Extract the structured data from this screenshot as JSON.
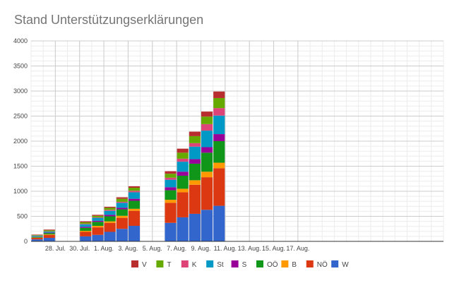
{
  "chart_data": {
    "type": "bar",
    "stacked": true,
    "title": "Stand Unterstützungserklärungen",
    "xlabel": "",
    "ylabel": "",
    "ylim": [
      0,
      4000
    ],
    "yticks": [
      0,
      500,
      1000,
      1500,
      2000,
      2500,
      3000,
      3500,
      4000
    ],
    "x_domain": [
      0,
      34
    ],
    "x_ticks": [
      {
        "day": 2,
        "label": "28. Jul."
      },
      {
        "day": 4,
        "label": "30. Jul."
      },
      {
        "day": 6,
        "label": "1. Aug."
      },
      {
        "day": 8,
        "label": "3. Aug."
      },
      {
        "day": 10,
        "label": "5. Aug."
      },
      {
        "day": 12,
        "label": "7. Aug."
      },
      {
        "day": 14,
        "label": "9. Aug."
      },
      {
        "day": 16,
        "label": "11. Aug."
      },
      {
        "day": 18,
        "label": "13. Aug."
      },
      {
        "day": 20,
        "label": "15. Aug."
      },
      {
        "day": 22,
        "label": "17. Aug."
      }
    ],
    "days": [
      0,
      1,
      4,
      5,
      6,
      7,
      8,
      11,
      12,
      13,
      14,
      15
    ],
    "grid": true,
    "legend_position": "bottom",
    "series": [
      {
        "name": "W",
        "color": "#3366cc",
        "values": [
          40,
          70,
          100,
          130,
          190,
          250,
          310,
          370,
          480,
          550,
          630,
          710
        ]
      },
      {
        "name": "NÖ",
        "color": "#dc3912",
        "values": [
          30,
          60,
          90,
          150,
          180,
          220,
          300,
          400,
          500,
          580,
          650,
          750
        ]
      },
      {
        "name": "B",
        "color": "#ff9900",
        "values": [
          5,
          10,
          20,
          30,
          30,
          40,
          40,
          60,
          70,
          90,
          110,
          110
        ]
      },
      {
        "name": "OÖ",
        "color": "#109618",
        "values": [
          15,
          25,
          60,
          80,
          100,
          130,
          160,
          190,
          260,
          330,
          380,
          430
        ]
      },
      {
        "name": "S",
        "color": "#990099",
        "values": [
          5,
          10,
          20,
          20,
          30,
          30,
          40,
          60,
          80,
          90,
          110,
          140
        ]
      },
      {
        "name": "St",
        "color": "#0099c6",
        "values": [
          15,
          20,
          50,
          60,
          80,
          100,
          130,
          150,
          200,
          250,
          330,
          370
        ]
      },
      {
        "name": "K",
        "color": "#dd4477",
        "values": [
          5,
          5,
          10,
          10,
          20,
          20,
          30,
          40,
          60,
          70,
          130,
          150
        ]
      },
      {
        "name": "T",
        "color": "#66aa00",
        "values": [
          10,
          20,
          30,
          30,
          40,
          60,
          60,
          80,
          120,
          140,
          150,
          200
        ]
      },
      {
        "name": "V",
        "color": "#b82e2e",
        "values": [
          10,
          15,
          20,
          20,
          20,
          30,
          30,
          50,
          80,
          90,
          100,
          130
        ]
      }
    ]
  }
}
